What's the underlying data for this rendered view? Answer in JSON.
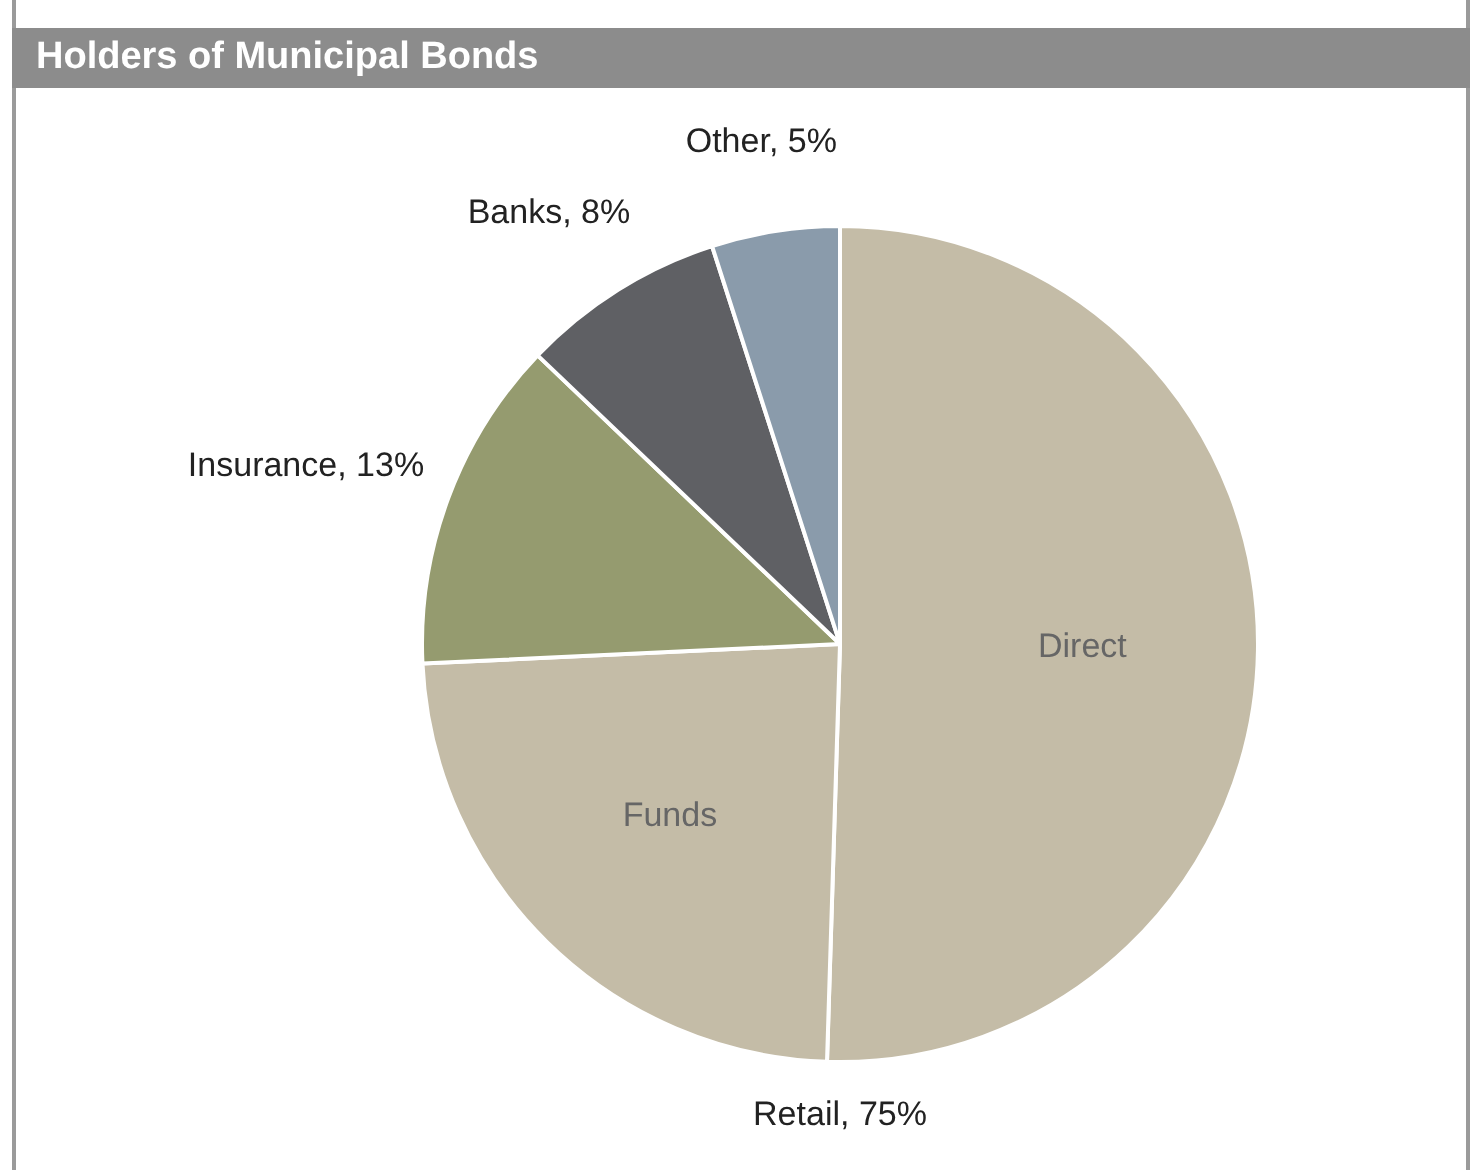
{
  "chart_data": {
    "type": "pie",
    "title": "Holders of Municipal Bonds",
    "categories": [
      "Direct",
      "Funds",
      "Insurance",
      "Banks",
      "Other"
    ],
    "values": [
      51,
      24,
      13,
      8,
      5
    ],
    "value_labels": [
      null,
      null,
      "13%",
      "8%",
      "5%"
    ],
    "colors": [
      "#c4bca7",
      "#c4bca7",
      "#959b6f",
      "#5f6064",
      "#8a9bab"
    ],
    "annotations": [
      "Retail, 75%"
    ],
    "legend": false
  }
}
